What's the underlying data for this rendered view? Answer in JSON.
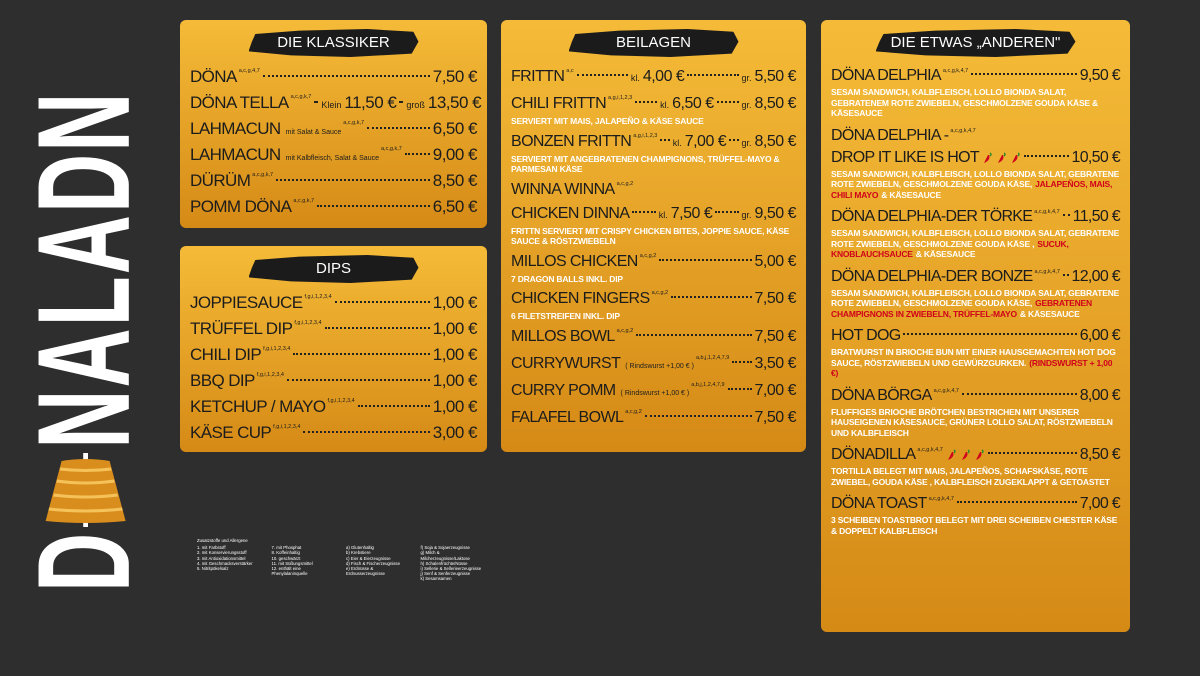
{
  "logo": {
    "start": "D",
    "end": "NALADN"
  },
  "panels": [
    {
      "title": "DIE KLASSIKER",
      "items": [
        {
          "name": "DÖNA",
          "allergens": "a,c,g,4,7",
          "price": "7,50 €"
        },
        {
          "name": "DÖNA TELLA",
          "allergens": "a,c,g,k,7",
          "sizes": [
            {
              "label": "Klein",
              "price": "11,50 €"
            },
            {
              "label": "groß",
              "price": "13,50 €"
            }
          ]
        },
        {
          "name": "LAHMACUN",
          "note": "mit Salat & Sauce",
          "allergens": "a,c,g,k,7",
          "price": "6,50 €"
        },
        {
          "name": "LAHMACUN",
          "note": "mit Kalbfleisch, Salat & Sauce",
          "allergens": "a,c,g,k,7",
          "price": "9,00 €"
        },
        {
          "name": "DÜRÜM",
          "allergens": "a,c,g,k,7",
          "price": "8,50 €"
        },
        {
          "name": "POMM DÖNA",
          "allergens": "a,c,g,k,7",
          "price": "6,50 €"
        }
      ]
    },
    {
      "title": "DIPS",
      "items": [
        {
          "name": "JOPPIESAUCE",
          "allergens": "f,g,i,1,2,3,4",
          "price": "1,00 €"
        },
        {
          "name": "TRÜFFEL DIP",
          "allergens": "f,g,i,1,2,3,4",
          "price": "1,00 €"
        },
        {
          "name": "CHILI DIP",
          "allergens": "f,g,i,1,2,3,4",
          "price": "1,00 €"
        },
        {
          "name": "BBQ DIP",
          "allergens": "f,g,i,1,2,3,4",
          "price": "1,00 €"
        },
        {
          "name": "KETCHUP / MAYO",
          "allergens": "f,g,i,1,2,3,4",
          "price": "1,00 €"
        },
        {
          "name": "KÄSE CUP",
          "allergens": "f,g,i,1,2,3,4",
          "price": "3,00 €"
        }
      ]
    },
    {
      "title": "BEILAGEN",
      "items": [
        {
          "name": "FRITTN",
          "allergens": "a,c",
          "sizes": [
            {
              "label": "kl.",
              "price": "4,00 €"
            },
            {
              "label": "gr.",
              "price": "5,50 €"
            }
          ]
        },
        {
          "name": "CHILI FRITTN",
          "allergens": "a,g,i,1,2,3",
          "sizes": [
            {
              "label": "kl.",
              "price": "6,50 €"
            },
            {
              "label": "gr.",
              "price": "8,50 €"
            }
          ],
          "desc": [
            "SERVIERT MIT MAIS, JALAPEÑO & KÄSE SAUCE"
          ]
        },
        {
          "name": "BONZEN FRITTN",
          "allergens": "a,g,i,1,2,3",
          "sizes": [
            {
              "label": "kl.",
              "price": "7,00 €"
            },
            {
              "label": "gr.",
              "price": "8,50 €"
            }
          ],
          "desc": [
            "SERVIERT MIT ANGEBRATENEN CHAMPIGNONS, TRÜFFEL-MAYO & PARMESAN KÄSE"
          ]
        },
        {
          "name": "WINNA WINNA",
          "name2": "CHICKEN DINNA",
          "allergens": "a,c,g,2",
          "sizes": [
            {
              "label": "kl.",
              "price": "7,50 €"
            },
            {
              "label": "gr.",
              "price": "9,50 €"
            }
          ],
          "desc": [
            "FRITTN SERVIERT MIT CRISPY CHICKEN BITES, JOPPIE SAUCE, KÄSE SAUCE & RÖSTZWIEBELN"
          ]
        },
        {
          "name": "MILLOS CHICKEN",
          "allergens": "a,c,g,2",
          "price": "5,00 €",
          "desc": [
            "7 DRAGON BALLS INKL. DIP"
          ]
        },
        {
          "name": "CHICKEN FINGERS",
          "allergens": "a,c,g,2",
          "price": "7,50 €",
          "desc": [
            "6 FILETSTREIFEN INKL. DIP"
          ]
        },
        {
          "name": "MILLOS BOWL",
          "allergens": "a,c,g,2",
          "price": "7,50 €"
        },
        {
          "name": "CURRYWURST",
          "note": "( Rindswurst +1,00 € )",
          "allergens": "a,b,j,1,2,4,7,9",
          "price": "3,50 €"
        },
        {
          "name": "CURRY POMM",
          "note": "( Rindswurst +1,00 € )",
          "allergens": "a,b,j,1,2,4,7,9",
          "price": "7,00 €"
        },
        {
          "name": "FALAFEL BOWL",
          "allergens": "a,c,g,2",
          "price": "7,50 €"
        }
      ]
    },
    {
      "title": "DIE ETWAS „ANDEREN\"",
      "items": [
        {
          "name": "DÖNA DELPHIA",
          "allergens": "a,c,g,k,4,7",
          "price": "9,50 €",
          "desc": [
            "SESAM SANDWICH, KALBFLEISCH, LOLLO BIONDA SALAT, GEBRATENEM ROTE ZWIEBELN, GESCHMOLZENE GOUDA KÄSE & KÄSESAUCE"
          ]
        },
        {
          "name": "DÖNA DELPHIA -",
          "name2": "DROP IT LIKE IS HOT",
          "allergens": "a,c,g,k,4,7",
          "chili": 3,
          "price": "10,50 €",
          "desc": [
            "SESAM SANDWICH, KALBFLEISCH, LOLLO BIONDA SALAT, GEBRATENE ROTE ZWIEBELN, GESCHMOLZENE GOUDA KÄSE,",
            {
              "red": "JALAPEÑOS, MAIS, CHILI MAYO"
            },
            "& KÄSESAUCE"
          ]
        },
        {
          "name": "DÖNA DELPHIA-DER TÖRKE",
          "allergens": "a,c,g,k,4,7",
          "price": "11,50 €",
          "desc": [
            "SESAM SANDWICH, KALBFLEISCH, LOLLO BIONDA SALAT, GEBRATENE ROTE ZWIEBELN, GESCHMOLZENE GOUDA KÄSE ,",
            {
              "red": "SUCUK, KNOBLAUCHSAUCE"
            },
            "& KÄSESAUCE"
          ]
        },
        {
          "name": "DÖNA DELPHIA-DER BONZE",
          "allergens": "a,c,g,k,4,7",
          "price": "12,00 €",
          "desc": [
            "SESAM SANDWICH, KALBFLEISCH, LOLLO BIONDA SALAT, GEBRATENE ROTE ZWIEBELN, GESCHMOLZENE GOUDA KÄSE,",
            {
              "red": "GEBRATENEN CHAMPIGNONS IN ZWIEBELN, TRÜFFEL-MAYO"
            },
            "& KÄSESAUCE"
          ]
        },
        {
          "name": "HOT DOG",
          "price": "6,00 €",
          "desc": [
            "BRATWURST IN BRIOCHE BUN MIT EINER HAUSGEMACHTEN HOT DOG SAUCE, RÖSTZWIEBELN UND GEWÜRZGURKEN.",
            {
              "red": "(RINDSWURST + 1,00 €)"
            }
          ]
        },
        {
          "name": "DÖNA BÖRGA",
          "allergens": "a,c,g,k,4,7",
          "price": "8,00 €",
          "desc": [
            "FLUFFIGES BRIOCHE BRÖTCHEN BESTRICHEN MIT UNSERER HAUSEIGENEN KÄSESAUCE, GRÜNER LOLLO SALAT, RÖSTZWIEBELN UND KALBFLEISCH"
          ]
        },
        {
          "name": "DÖNADILLA",
          "chili": 3,
          "allergens": "a,c,g,k,4,7",
          "price": "8,50 €",
          "desc": [
            "TORTILLA BELEGT MIT MAIS, JALAPEÑOS, SCHAFSKÄSE, ROTE ZWIEBEL, GOUDA KÄSE , KALBFLEISCH ZUGEKLAPPT & GETOASTET"
          ]
        },
        {
          "name": "DÖNA TOAST",
          "allergens": "a,c,g,k,4,7",
          "price": "7,00 €",
          "desc": [
            "3 SCHEIBEN TOASTBROT BELEGT MIT DREI SCHEIBEN CHESTER KÄSE & DOPPELT KALBFLEISCH"
          ]
        }
      ]
    }
  ],
  "allergens": {
    "title": "Zusatzstoffe und Allergene",
    "columns": [
      [
        "1. mit Farbstoff",
        "2. mit Konservierungsstoff",
        "3. mit Antioxidationsmittel",
        "4. mit Geschmacksverstärker",
        "5. Nitritpökelsalz"
      ],
      [
        "7. mit Phosphat",
        "8. Koffeinhaltig",
        "10. geschwärzt",
        "11. mit Süßungsmittel",
        "12. enthält eine Phenylalaninquelle"
      ],
      [
        "a) Glutenhaltig",
        "b) Krebstiere",
        "c) Eier & Eierzeugnisse",
        "d) Fisch & Fischerzeugnisse",
        "e) Erdnüsse & Erdnusserzeugnisse"
      ],
      [
        "f) Soja & Sojaerzeugnisse",
        "g) Milch & Milcherzeugnisse/Laktose",
        "h) Schalenfrüchte/Nüsse",
        "i) Sellerie & Sellerieerzeugnisse",
        "j) Senf & Senferzeugnisse",
        "k) Sesamsamen"
      ]
    ]
  }
}
